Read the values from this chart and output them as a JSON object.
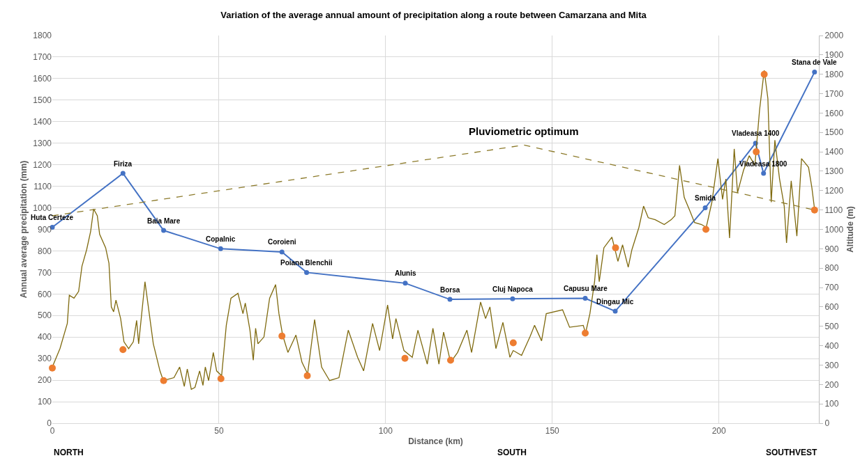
{
  "chart_data": {
    "type": "line",
    "title": "Variation of the average annual amount of precipitation along a route between Camarzana and Mita",
    "xlabel": "Distance (km)",
    "ylabel": "Annual average precipitation (mm)",
    "y2label": "Altitude (m)",
    "xlim": [
      0,
      230
    ],
    "xticks": [
      0,
      50,
      100,
      150,
      200
    ],
    "ylim": [
      0,
      1800
    ],
    "yticks": [
      0,
      100,
      200,
      300,
      400,
      500,
      600,
      700,
      800,
      900,
      1000,
      1100,
      1200,
      1300,
      1400,
      1500,
      1600,
      1700,
      1800
    ],
    "y2lim": [
      0,
      2000
    ],
    "y2ticks": [
      0,
      100,
      200,
      300,
      400,
      500,
      600,
      700,
      800,
      900,
      1000,
      1100,
      1200,
      1300,
      1400,
      1500,
      1600,
      1700,
      1800,
      1900,
      2000
    ],
    "grid": true,
    "series": [
      {
        "axis": "y2",
        "color": "#7f6a0f",
        "marker": "none",
        "line_style": "solid",
        "x": [
          0,
          2.3,
          4.5,
          5.1,
          6.5,
          7.9,
          8.9,
          10.3,
          11.5,
          12.4,
          13.5,
          14.2,
          16.0,
          17.0,
          17.7,
          18.4,
          19.1,
          20.5,
          21.5,
          22.9,
          24.3,
          25.3,
          25.9,
          27.8,
          30.3,
          32.3,
          33.3,
          36.5,
          38.2,
          39.6,
          40.5,
          41.7,
          42.8,
          44.2,
          45.2,
          45.9,
          46.9,
          48.3,
          49.3,
          50.8,
          52.2,
          53.6,
          55.7,
          57.2,
          57.9,
          59.3,
          60.3,
          61.0,
          61.7,
          63.5,
          65.2,
          67.0,
          68.0,
          69.1,
          70.7,
          73.1,
          74.9,
          76.6,
          78.7,
          80.8,
          83.2,
          86.0,
          88.8,
          91.6,
          93.4,
          96.1,
          98.2,
          100.6,
          102.1,
          103.1,
          105.5,
          108.0,
          109.7,
          112.5,
          114.2,
          116.0,
          117.4,
          119.5,
          121.6,
          124.4,
          125.8,
          128.5,
          130.0,
          131.3,
          133.1,
          135.2,
          137.3,
          138.3,
          140.8,
          143.3,
          144.7,
          146.8,
          148.2,
          153.1,
          155.2,
          159.3,
          160.0,
          161.3,
          162.7,
          163.4,
          164.1,
          165.5,
          167.9,
          169.7,
          171.1,
          172.8,
          173.9,
          176.0,
          177.4,
          178.8,
          180.9,
          183.6,
          185.7,
          186.8,
          188.2,
          189.6,
          191.3,
          192.7,
          194.8,
          196.2,
          197.9,
          199.7,
          201.1,
          202.1,
          203.2,
          204.6,
          205.6,
          207.4,
          209.1,
          210.8,
          212.2,
          213.6,
          214.7,
          215.7,
          216.8,
          218.2,
          219.6,
          220.3,
          221.7,
          223.4,
          224.8,
          226.9,
          227.9,
          228.7
        ],
        "values": [
          290,
          385,
          515,
          660,
          645,
          680,
          810,
          895,
          990,
          1105,
          1070,
          975,
          905,
          825,
          600,
          575,
          635,
          540,
          420,
          385,
          420,
          530,
          410,
          730,
          410,
          270,
          220,
          235,
          290,
          190,
          280,
          175,
          185,
          270,
          195,
          290,
          220,
          365,
          270,
          245,
          505,
          645,
          670,
          565,
          620,
          480,
          325,
          490,
          410,
          445,
          645,
          715,
          565,
          455,
          365,
          455,
          315,
          255,
          535,
          290,
          220,
          235,
          480,
          340,
          270,
          515,
          375,
          610,
          435,
          540,
          375,
          340,
          480,
          305,
          490,
          305,
          470,
          315,
          365,
          480,
          365,
          625,
          540,
          600,
          385,
          520,
          340,
          375,
          350,
          445,
          505,
          425,
          565,
          585,
          495,
          505,
          465,
          565,
          730,
          870,
          730,
          905,
          960,
          835,
          920,
          805,
          895,
          1010,
          1120,
          1060,
          1050,
          1025,
          1050,
          1070,
          1330,
          1165,
          1095,
          1035,
          1025,
          1010,
          1140,
          1365,
          1155,
          1260,
          955,
          1415,
          1190,
          1305,
          1380,
          1330,
          1615,
          1820,
          1675,
          1140,
          1460,
          1260,
          1120,
          930,
          1250,
          965,
          1365,
          1320,
          1215,
          1105
        ]
      },
      {
        "axis": "y2",
        "name": "Pluviometric optimum",
        "color": "#8c7a2a",
        "marker": "none",
        "line_style": "dashed",
        "x": [
          0,
          141.5,
          228.7
        ],
        "values": [
          1070,
          1435,
          1100
        ]
      },
      {
        "axis": "y",
        "color": "#4472c4",
        "marker": "circle",
        "line_style": "solid",
        "x": [
          0,
          21.2,
          33.4,
          50.5,
          68.9,
          76.3,
          105.9,
          119.3,
          138.1,
          159.9,
          168.9,
          195.9,
          211.0,
          213.4,
          228.7
        ],
        "values": [
          910,
          1160,
          895,
          810,
          795,
          700,
          650,
          575,
          578,
          580,
          520,
          1000,
          1300,
          1160,
          1630
        ]
      },
      {
        "type": "scatter",
        "axis": "y2",
        "color": "#ed7d31",
        "marker": "circle",
        "x": [
          0,
          21.2,
          33.4,
          50.6,
          68.9,
          76.5,
          105.8,
          119.5,
          138.3,
          159.9,
          169.0,
          196.1,
          211.2,
          213.6,
          228.7
        ],
        "values": [
          285,
          380,
          220,
          230,
          450,
          245,
          335,
          325,
          415,
          465,
          905,
          1000,
          1400,
          1800,
          1100
        ]
      }
    ],
    "annotations": [
      {
        "text": "Huta Certeze",
        "x": 0,
        "y": 910
      },
      {
        "text": "Firiza",
        "x": 21.2,
        "y": 1160
      },
      {
        "text": "Baia Mare",
        "x": 33.4,
        "y": 895
      },
      {
        "text": "Copalnic",
        "x": 50.5,
        "y": 810
      },
      {
        "text": "Coroieni",
        "x": 68.9,
        "y": 795
      },
      {
        "text": "Poiana Blenchii",
        "x": 76.3,
        "y": 700
      },
      {
        "text": "Alunis",
        "x": 105.9,
        "y": 650
      },
      {
        "text": "Borsa",
        "x": 119.3,
        "y": 575
      },
      {
        "text": "Cluj Napoca",
        "x": 138.1,
        "y": 578
      },
      {
        "text": "Capusu Mare",
        "x": 159.9,
        "y": 580
      },
      {
        "text": "Dingau Mic",
        "x": 168.9,
        "y": 520
      },
      {
        "text": "Smida",
        "x": 195.9,
        "y": 1000
      },
      {
        "text": "Vladeasa 1400",
        "x": 211.0,
        "y": 1300
      },
      {
        "text": "Vladeasa 1800",
        "x": 213.4,
        "y": 1160
      },
      {
        "text": "Stana de Vale",
        "x": 228.7,
        "y": 1630
      },
      "NORTH",
      "SOUTH",
      "SOUTHVEST"
    ]
  }
}
